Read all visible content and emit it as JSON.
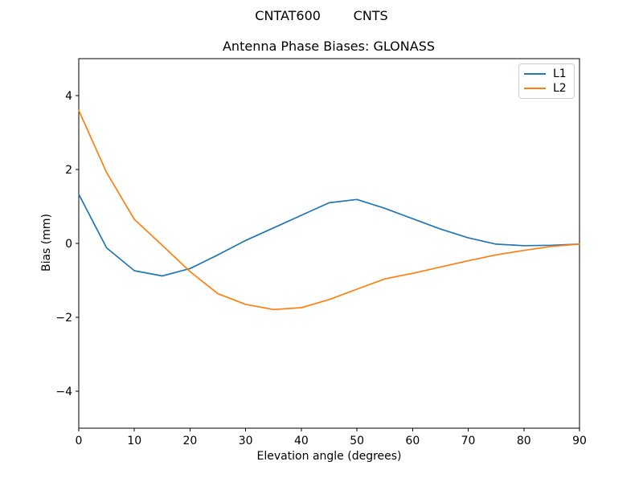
{
  "figure": {
    "suptitle": "CNTAT600        CNTS",
    "title": "Antenna Phase Biases: GLONASS",
    "background": "#ffffff"
  },
  "chart_data": {
    "type": "line",
    "suptitle": "CNTAT600        CNTS",
    "title": "Antenna Phase Biases: GLONASS",
    "xlabel": "Elevation angle (degrees)",
    "ylabel": "Bias (mm)",
    "xlim": [
      0,
      90
    ],
    "ylim": [
      -5,
      5
    ],
    "xticks": [
      0,
      10,
      20,
      30,
      40,
      50,
      60,
      70,
      80,
      90
    ],
    "yticks": [
      -4,
      -2,
      0,
      2,
      4
    ],
    "grid": false,
    "legend_position": "upper right",
    "x": [
      0,
      5,
      10,
      15,
      20,
      25,
      30,
      35,
      40,
      45,
      50,
      55,
      60,
      65,
      70,
      75,
      80,
      85,
      90
    ],
    "series": [
      {
        "name": "L1",
        "color": "#1f77b4",
        "values": [
          1.33,
          -0.12,
          -0.74,
          -0.88,
          -0.68,
          -0.31,
          0.08,
          0.42,
          0.76,
          1.1,
          1.19,
          0.95,
          0.67,
          0.39,
          0.15,
          -0.02,
          -0.06,
          -0.05,
          -0.02
        ]
      },
      {
        "name": "L2",
        "color": "#ff7f0e",
        "values": [
          3.6,
          1.92,
          0.65,
          -0.05,
          -0.76,
          -1.36,
          -1.65,
          -1.79,
          -1.74,
          -1.52,
          -1.24,
          -0.96,
          -0.81,
          -0.64,
          -0.47,
          -0.31,
          -0.19,
          -0.08,
          -0.02
        ]
      }
    ]
  },
  "colors": {
    "axis": "#000000",
    "background": "#ffffff",
    "legend_border": "#cccccc"
  }
}
